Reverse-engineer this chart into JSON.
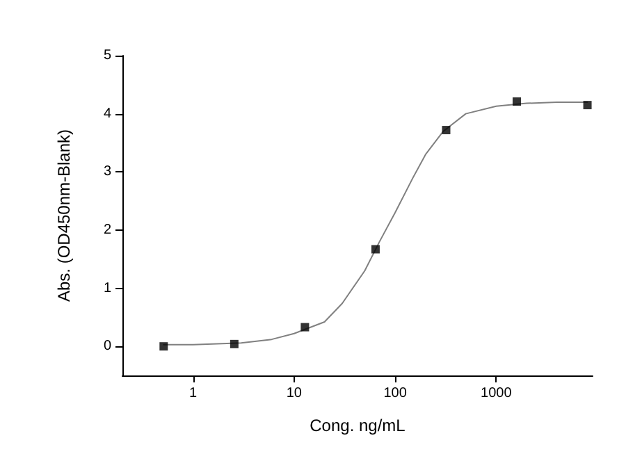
{
  "chart_data": {
    "type": "scatter",
    "xlabel": "Cong. ng/mL",
    "ylabel": "Abs. (OD450nm-Blank)",
    "log": "x",
    "xlim": [
      0.2,
      9000
    ],
    "xticks": [
      1,
      10,
      100,
      1000
    ],
    "ylim": [
      -0.5,
      5
    ],
    "yticks": [
      0,
      1,
      2,
      3,
      4,
      5
    ],
    "grid": false,
    "legend": false,
    "series": [
      {
        "marker": "square",
        "color": "#000000",
        "x": [
          0.512,
          2.56,
          12.8,
          64,
          320,
          1600,
          8000
        ],
        "values": [
          0.0,
          0.04,
          0.33,
          1.67,
          3.72,
          4.21,
          4.15
        ]
      },
      {
        "type": "line",
        "marker": "none",
        "line_style": "solid",
        "color": "#808080",
        "x": [
          0.512,
          1,
          3,
          6,
          10,
          20,
          30,
          50,
          70,
          100,
          150,
          200,
          300,
          500,
          1000,
          2000,
          4000,
          8000
        ],
        "values": [
          0.03,
          0.03,
          0.06,
          0.12,
          0.22,
          0.42,
          0.74,
          1.3,
          1.8,
          2.3,
          2.9,
          3.3,
          3.7,
          4.0,
          4.13,
          4.18,
          4.2,
          4.2
        ]
      }
    ]
  }
}
